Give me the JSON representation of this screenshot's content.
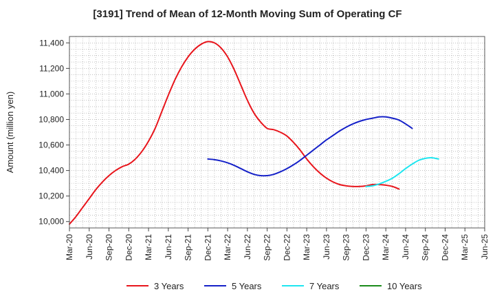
{
  "chart_data": {
    "type": "line",
    "title": "[3191]  Trend of Mean of 12-Month Moving Sum of Operating CF",
    "xlabel": "",
    "ylabel": "Amount (million yen)",
    "ylim": [
      9950,
      11450
    ],
    "y_ticks": [
      10000,
      10200,
      10400,
      10600,
      10800,
      11000,
      11200,
      11400
    ],
    "y_tick_labels": [
      "10,000",
      "10,200",
      "10,400",
      "10,600",
      "10,800",
      "11,000",
      "11,200",
      "11,400"
    ],
    "x_tick_labels": [
      "Mar-20",
      "Jun-20",
      "Sep-20",
      "Dec-20",
      "Mar-21",
      "Jun-21",
      "Sep-21",
      "Dec-21",
      "Mar-22",
      "Jun-22",
      "Sep-22",
      "Dec-22",
      "Mar-23",
      "Jun-23",
      "Sep-23",
      "Dec-23",
      "Mar-24",
      "Jun-24",
      "Sep-24",
      "Dec-24",
      "Mar-25",
      "Jun-25"
    ],
    "grid": true,
    "legend_position": "bottom",
    "series": [
      {
        "name": "3 Years",
        "color": "#e8141b",
        "start_index": 0,
        "values": [
          9980,
          10040,
          10110,
          10180,
          10250,
          10310,
          10360,
          10400,
          10430,
          10450,
          10490,
          10550,
          10630,
          10730,
          10860,
          10990,
          11110,
          11210,
          11290,
          11350,
          11390,
          11410,
          11400,
          11360,
          11290,
          11190,
          11070,
          10950,
          10850,
          10780,
          10730,
          10720,
          10700,
          10670,
          10620,
          10560,
          10490,
          10430,
          10380,
          10340,
          10310,
          10290,
          10280,
          10275,
          10275,
          10280,
          10290,
          10290,
          10285,
          10275,
          10255
        ]
      },
      {
        "name": "5 Years",
        "color": "#1420c8",
        "start_index": 21,
        "values": [
          10490,
          10485,
          10475,
          10460,
          10440,
          10415,
          10390,
          10370,
          10360,
          10360,
          10370,
          10390,
          10415,
          10445,
          10480,
          10520,
          10560,
          10600,
          10640,
          10675,
          10710,
          10740,
          10765,
          10785,
          10800,
          10810,
          10820,
          10820,
          10810,
          10795,
          10765,
          10730
        ]
      },
      {
        "name": "7 Years",
        "color": "#1de6f0",
        "start_index": 45,
        "values": [
          10275,
          10280,
          10295,
          10315,
          10340,
          10375,
          10415,
          10450,
          10480,
          10495,
          10500,
          10490
        ]
      },
      {
        "name": "10 Years",
        "color": "#1a8a1a",
        "start_index": 0,
        "values": []
      }
    ]
  }
}
